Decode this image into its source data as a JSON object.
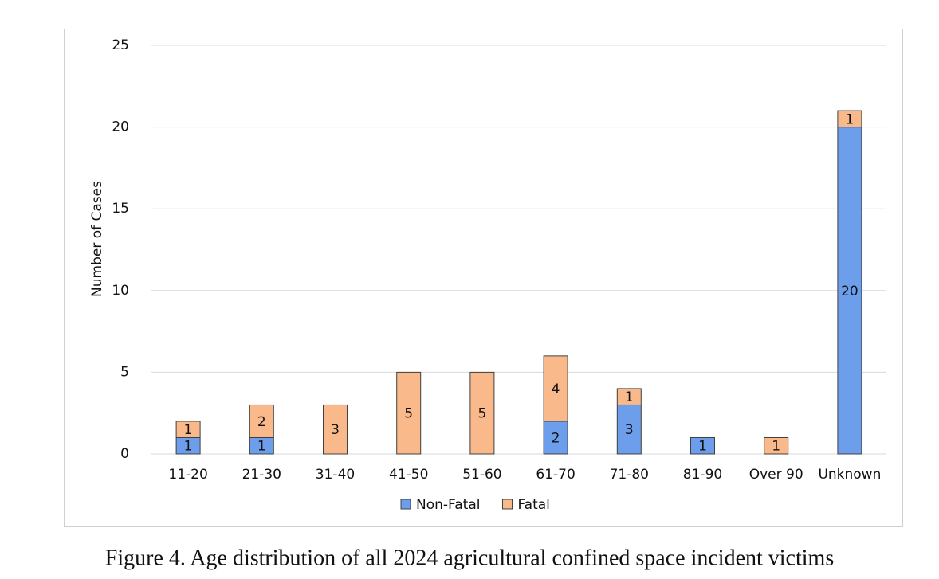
{
  "chart_data": {
    "type": "bar",
    "stacked": true,
    "title": "Figure 4. Age distribution of all 2024 agricultural confined space incident victims",
    "y_label": "Number of Cases",
    "categories": [
      "11-20",
      "21-30",
      "31-40",
      "41-50",
      "51-60",
      "61-70",
      "71-80",
      "81-90",
      "Over 90",
      "Unknown"
    ],
    "series": [
      {
        "name": "Non-Fatal",
        "color": "#6d9eeb",
        "values": [
          1,
          1,
          0,
          0,
          0,
          2,
          3,
          1,
          0,
          20
        ]
      },
      {
        "name": "Fatal",
        "color": "#f9b98b",
        "values": [
          1,
          2,
          3,
          5,
          5,
          4,
          1,
          0,
          1,
          1
        ]
      }
    ],
    "ylim": [
      0,
      25
    ],
    "yticks": [
      0,
      5,
      10,
      15,
      20,
      25
    ],
    "grid": true,
    "legend": "bottom"
  }
}
